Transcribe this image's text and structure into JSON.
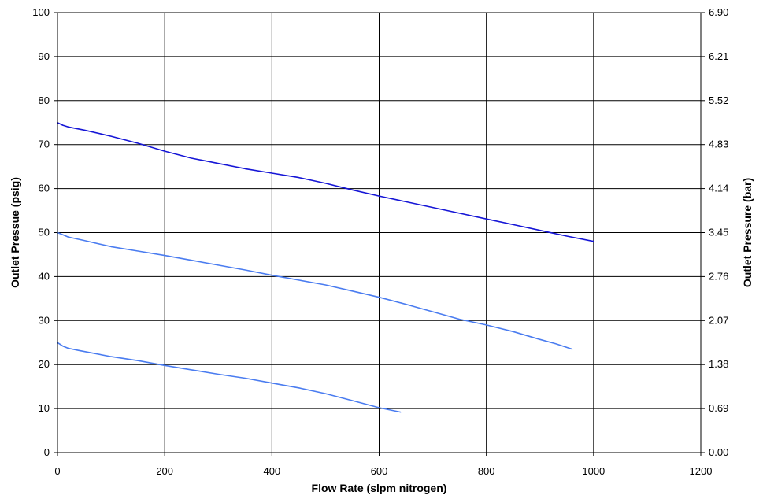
{
  "chart_data": {
    "type": "line",
    "title": "",
    "xlabel": "Flow Rate (slpm nitrogen)",
    "ylabel": "Outlet Pressue (psig)",
    "y2label": "Outlet Pressure (bar)",
    "xlim": [
      0,
      1200
    ],
    "ylim": [
      0,
      100
    ],
    "y2lim": [
      0,
      6.9
    ],
    "grid": true,
    "legend": "none",
    "x_ticks": [
      "0",
      "200",
      "400",
      "600",
      "800",
      "1000",
      "1200"
    ],
    "y_ticks": [
      "0",
      "10",
      "20",
      "30",
      "40",
      "50",
      "60",
      "70",
      "80",
      "90",
      "100"
    ],
    "y2_ticks": [
      "0.00",
      "0.69",
      "1.38",
      "2.07",
      "2.76",
      "3.45",
      "4.14",
      "4.83",
      "5.52",
      "6.21",
      "6.90"
    ],
    "series": [
      {
        "color": "#1515d6",
        "x": [
          0,
          10,
          20,
          50,
          100,
          150,
          200,
          250,
          300,
          350,
          400,
          450,
          500,
          550,
          600,
          650,
          700,
          750,
          800,
          850,
          900,
          950,
          1000
        ],
        "y": [
          75,
          74.4,
          74.0,
          73.3,
          71.9,
          70.3,
          68.5,
          66.9,
          65.7,
          64.5,
          63.5,
          62.5,
          61.2,
          59.7,
          58.3,
          57.0,
          55.7,
          54.4,
          53.1,
          51.8,
          50.5,
          49.2,
          48.0
        ]
      },
      {
        "color": "#4a7cf0",
        "x": [
          0,
          10,
          20,
          50,
          100,
          150,
          200,
          250,
          300,
          350,
          400,
          450,
          500,
          550,
          600,
          650,
          700,
          750,
          800,
          850,
          900,
          930,
          960
        ],
        "y": [
          50,
          49.5,
          49.0,
          48.2,
          46.8,
          45.8,
          44.8,
          43.7,
          42.6,
          41.5,
          40.3,
          39.2,
          38.1,
          36.7,
          35.3,
          33.7,
          32.0,
          30.3,
          29.0,
          27.5,
          25.7,
          24.7,
          23.5
        ]
      },
      {
        "color": "#4a7cf0",
        "x": [
          0,
          10,
          20,
          40,
          100,
          150,
          200,
          250,
          300,
          350,
          400,
          450,
          500,
          550,
          600,
          640
        ],
        "y": [
          25,
          24.2,
          23.7,
          23.2,
          21.8,
          20.9,
          19.8,
          18.8,
          17.8,
          16.9,
          15.8,
          14.7,
          13.4,
          11.8,
          10.2,
          9.2
        ]
      }
    ]
  }
}
